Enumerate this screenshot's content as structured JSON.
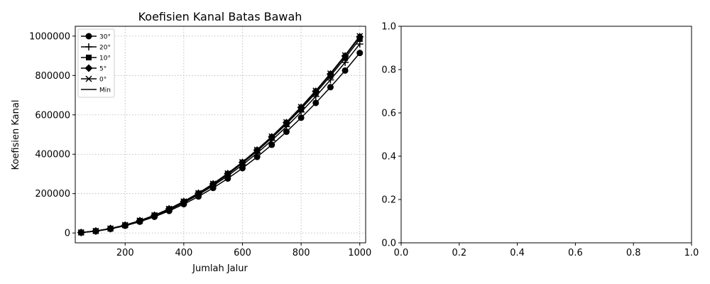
{
  "chart_data": [
    {
      "type": "line",
      "title": "Koefisien Kanal Batas Bawah",
      "xlabel": "Jumlah Jalur",
      "ylabel": "Koefisien Kanal",
      "xlim": [
        30,
        1020
      ],
      "ylim": [
        -50000,
        1050000
      ],
      "xticks": [
        200,
        400,
        600,
        800,
        1000
      ],
      "xtick_labels": [
        "200",
        "400",
        "600",
        "800",
        "1000"
      ],
      "yticks": [
        0,
        200000,
        400000,
        600000,
        800000,
        1000000
      ],
      "ytick_labels": [
        "0",
        "200000",
        "400000",
        "600000",
        "800000",
        "1000000"
      ],
      "grid": true,
      "legend_position": "top-left",
      "x": [
        50,
        100,
        150,
        200,
        250,
        300,
        350,
        400,
        450,
        500,
        550,
        600,
        650,
        700,
        750,
        800,
        850,
        900,
        950,
        1000
      ],
      "series": [
        {
          "name": "30°",
          "marker": "circle",
          "color": "#000000",
          "values": [
            2300,
            9200,
            20600,
            36600,
            57100,
            82300,
            112000,
            146300,
            185200,
            228600,
            276600,
            329200,
            386300,
            448000,
            514300,
            585200,
            660600,
            740600,
            825200,
            914400
          ]
        },
        {
          "name": "20°",
          "marker": "plus",
          "color": "#000000",
          "values": [
            2400,
            9600,
            21600,
            38400,
            60000,
            86400,
            117600,
            153600,
            194400,
            240000,
            290400,
            345600,
            405600,
            470400,
            540000,
            614400,
            693600,
            777600,
            866400,
            960000
          ]
        },
        {
          "name": "10°",
          "marker": "square",
          "color": "#000000",
          "values": [
            2460,
            9850,
            22150,
            39400,
            61550,
            88600,
            120600,
            157600,
            199400,
            246200,
            297900,
            354500,
            416100,
            482600,
            554000,
            630300,
            711600,
            797700,
            888900,
            984900
          ]
        },
        {
          "name": "5°",
          "marker": "diamond",
          "color": "#000000",
          "values": [
            2490,
            9960,
            22400,
            39800,
            62200,
            89700,
            122000,
            159400,
            201700,
            249000,
            301300,
            358600,
            420800,
            488000,
            560300,
            637500,
            719700,
            806900,
            899000,
            996200
          ]
        },
        {
          "name": "0°",
          "marker": "x",
          "color": "#000000",
          "values": [
            2500,
            10000,
            22500,
            40000,
            62500,
            90000,
            122500,
            160000,
            202500,
            250000,
            302500,
            360000,
            422500,
            490000,
            562500,
            640000,
            722500,
            810000,
            902500,
            1000000
          ]
        },
        {
          "name": "Min",
          "marker": "none",
          "color": "#000000",
          "values": [
            2500,
            10000,
            22500,
            40000,
            62500,
            90000,
            122500,
            160000,
            202500,
            250000,
            302500,
            360000,
            422500,
            490000,
            562500,
            640000,
            722500,
            810000,
            902500,
            1000000
          ]
        }
      ]
    },
    {
      "type": "line",
      "title": "",
      "xlabel": "",
      "ylabel": "",
      "xlim": [
        0,
        1
      ],
      "ylim": [
        0,
        1
      ],
      "xticks": [
        0,
        0.2,
        0.4,
        0.6,
        0.8,
        1.0
      ],
      "xtick_labels": [
        "0.0",
        "0.2",
        "0.4",
        "0.6",
        "0.8",
        "1.0"
      ],
      "yticks": [
        0,
        0.2,
        0.4,
        0.6,
        0.8,
        1.0
      ],
      "ytick_labels": [
        "0.0",
        "0.2",
        "0.4",
        "0.6",
        "0.8",
        "1.0"
      ],
      "grid": false,
      "series": []
    }
  ]
}
